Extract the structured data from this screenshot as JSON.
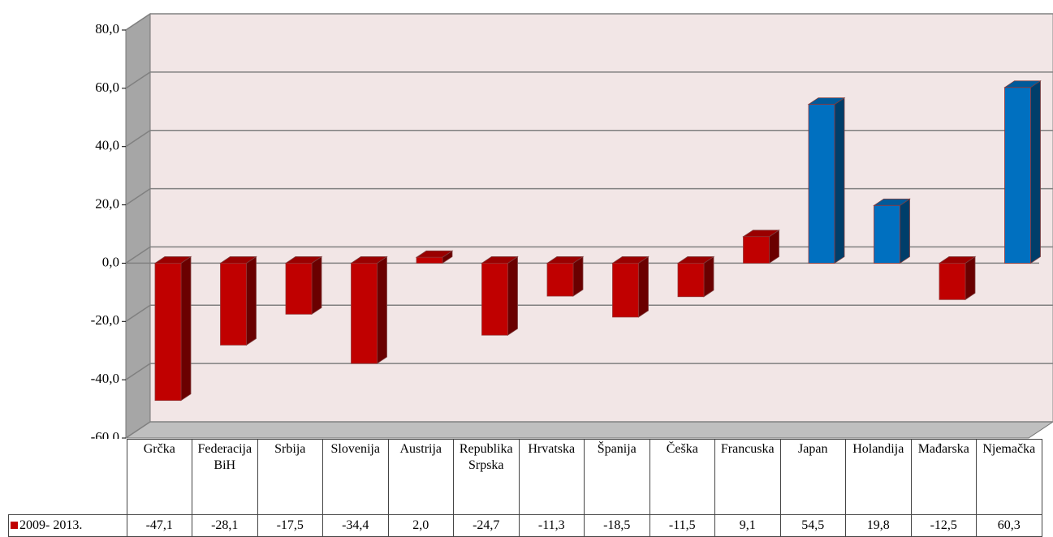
{
  "chart_data": {
    "type": "bar3d",
    "categories": [
      "Grčka",
      "Federacija BiH",
      "Srbija",
      "Slovenija",
      "Austrija",
      "Republika Srpska",
      "Hrvatska",
      "Španija",
      "Češka",
      "Francuska",
      "Japan",
      "Holandija",
      "Mađarska",
      "Njemačka"
    ],
    "series": [
      {
        "name": "2009- 2013.",
        "color": "#c00000",
        "values": [
          -47.1,
          -28.1,
          -17.5,
          -34.4,
          2.0,
          -24.7,
          -11.3,
          -18.5,
          -11.5,
          9.1,
          54.5,
          19.8,
          -12.5,
          60.3
        ],
        "value_labels": [
          "-47,1",
          "-28,1",
          "-17,5",
          "-34,4",
          "2,0",
          "-24,7",
          "-11,3",
          "-18,5",
          "-11,5",
          "9,1",
          "54,5",
          "19,8",
          "-12,5",
          "60,3"
        ],
        "colors": [
          "#c00000",
          "#c00000",
          "#c00000",
          "#c00000",
          "#c00000",
          "#c00000",
          "#c00000",
          "#c00000",
          "#c00000",
          "#c00000",
          "#0070c0",
          "#0070c0",
          "#c00000",
          "#0070c0"
        ]
      }
    ],
    "ylim": [
      -60,
      80
    ],
    "yticks": [
      {
        "value": -60,
        "label": "-60,0"
      },
      {
        "value": -40,
        "label": "-40,0"
      },
      {
        "value": -20,
        "label": "-20,0"
      },
      {
        "value": 0,
        "label": "0,0"
      },
      {
        "value": 20,
        "label": "20,0"
      },
      {
        "value": 40,
        "label": "40,0"
      },
      {
        "value": 60,
        "label": "60,0"
      },
      {
        "value": 80,
        "label": "80,0"
      }
    ],
    "grid": true,
    "data_table": true
  }
}
